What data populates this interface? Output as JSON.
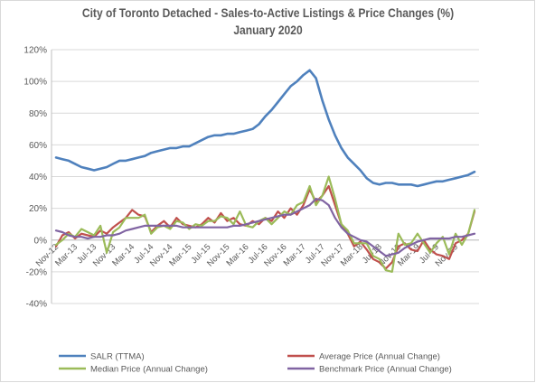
{
  "chart_data": {
    "type": "line",
    "title": "City of Toronto Detached - Sales-to-Active Listings & Price Changes (%)",
    "subtitle": "January 2020",
    "ylim": [
      -40,
      120
    ],
    "y_ticks": [
      "-40%",
      "-20%",
      "0%",
      "20%",
      "40%",
      "60%",
      "80%",
      "100%",
      "120%"
    ],
    "y_tick_values": [
      -40,
      -20,
      0,
      20,
      40,
      60,
      80,
      100,
      120
    ],
    "x_tick_labels": [
      "Nov-12",
      "Mar-13",
      "Jul-13",
      "Nov-13",
      "Mar-14",
      "Jul-14",
      "Nov-14",
      "Mar-15",
      "Jul-15",
      "Nov-15",
      "Mar-16",
      "Jul-16",
      "Nov-16",
      "Mar-17",
      "Jul-17",
      "Nov-17",
      "Mar-18",
      "Jul-18",
      "Nov-18",
      "Mar-19",
      "Jul-19",
      "Nov-19"
    ],
    "x_start": "Nov-12",
    "x_end": "Jan-20",
    "grid": true,
    "legend_position": "bottom",
    "series": [
      {
        "name": "SALR (TTMA)",
        "color": "#4f81bd",
        "values": [
          52,
          51,
          50,
          48,
          46,
          45,
          44,
          45,
          46,
          48,
          50,
          50,
          51,
          52,
          53,
          55,
          56,
          57,
          58,
          58,
          59,
          59,
          61,
          63,
          65,
          66,
          66,
          67,
          67,
          68,
          69,
          70,
          73,
          78,
          82,
          87,
          92,
          97,
          100,
          104,
          107,
          102,
          88,
          76,
          66,
          58,
          52,
          48,
          44,
          39,
          36,
          35,
          36,
          36,
          35,
          35,
          35,
          34,
          35,
          36,
          37,
          37,
          38,
          39,
          40,
          41,
          43
        ]
      },
      {
        "name": "Average Price (Annual Change)",
        "color": "#c0504d",
        "values": [
          -4,
          3,
          5,
          1,
          4,
          3,
          2,
          6,
          4,
          8,
          11,
          14,
          19,
          16,
          15,
          5,
          9,
          12,
          8,
          14,
          10,
          9,
          8,
          10,
          14,
          11,
          17,
          12,
          14,
          10,
          9,
          12,
          10,
          14,
          12,
          18,
          14,
          20,
          16,
          22,
          32,
          24,
          28,
          34,
          22,
          10,
          4,
          -4,
          -1,
          -6,
          -12,
          -14,
          -18,
          -14,
          -4,
          -2,
          -6,
          -7,
          0,
          -6,
          -9,
          -10,
          -12,
          -2,
          0,
          4,
          18
        ]
      },
      {
        "name": "Median Price (Annual Change)",
        "color": "#9bbb59",
        "values": [
          -3,
          0,
          4,
          2,
          7,
          5,
          3,
          9,
          -8,
          5,
          8,
          14,
          14,
          14,
          16,
          4,
          8,
          9,
          7,
          12,
          11,
          7,
          10,
          9,
          12,
          12,
          15,
          14,
          10,
          18,
          9,
          8,
          12,
          14,
          10,
          14,
          18,
          16,
          22,
          24,
          34,
          22,
          28,
          40,
          26,
          10,
          6,
          -2,
          -2,
          -2,
          -10,
          -12,
          -19,
          -20,
          4,
          -3,
          -2,
          4,
          -2,
          -8,
          -2,
          2,
          -9,
          4,
          -3,
          4,
          19
        ]
      },
      {
        "name": "Benchmark Price (Annual Change)",
        "color": "#8064a2",
        "values": [
          6,
          5,
          3,
          2,
          2,
          1,
          2,
          2,
          3,
          3,
          4,
          6,
          7,
          8,
          9,
          9,
          9,
          9,
          9,
          9,
          8,
          8,
          8,
          8,
          8,
          8,
          8,
          8,
          9,
          9,
          10,
          11,
          12,
          13,
          14,
          15,
          16,
          16,
          18,
          20,
          22,
          26,
          25,
          22,
          14,
          8,
          4,
          2,
          0,
          -1,
          -4,
          -7,
          -10,
          -9,
          -8,
          -5,
          -3,
          -1,
          0,
          1,
          1,
          1,
          1,
          2,
          2,
          3,
          4
        ]
      }
    ]
  }
}
